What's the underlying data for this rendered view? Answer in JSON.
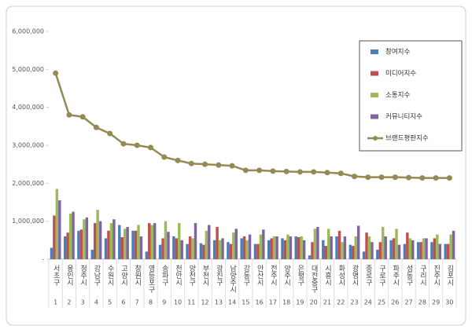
{
  "chart_data": {
    "type": "bar",
    "categories": [
      "서초구",
      "용인시",
      "청주시",
      "강남구",
      "수원시",
      "고양시",
      "창원시",
      "영등포구",
      "송파구",
      "천안시",
      "양천구",
      "부천시",
      "광진구",
      "남양주시",
      "강동구",
      "안산시",
      "전주시",
      "양주시",
      "은평구",
      "대전중구",
      "시흥시",
      "화성시",
      "광명시",
      "종로구",
      "구로구",
      "파주시",
      "성동구",
      "구리시",
      "진주시",
      "김포시"
    ],
    "ranks": [
      "1",
      "2",
      "3",
      "4",
      "5",
      "6",
      "7",
      "8",
      "9",
      "10",
      "11",
      "12",
      "13",
      "14",
      "15",
      "16",
      "17",
      "18",
      "19",
      "20",
      "21",
      "22",
      "23",
      "24",
      "25",
      "26",
      "27",
      "28",
      "29",
      "30"
    ],
    "series": [
      {
        "name": "참여지수",
        "color": "#4a7ebb",
        "type": "bar",
        "values": [
          300000,
          600000,
          750000,
          250000,
          550000,
          900000,
          750000,
          200000,
          380000,
          600000,
          400000,
          420000,
          500000,
          450000,
          550000,
          400000,
          500000,
          550000,
          600000,
          100000,
          500000,
          600000,
          380000,
          200000,
          250000,
          500000,
          400000,
          450000,
          450000,
          400000
        ]
      },
      {
        "name": "미디어지수",
        "color": "#c0504d",
        "type": "bar",
        "values": [
          1150000,
          700000,
          780000,
          950000,
          750000,
          580000,
          750000,
          950000,
          550000,
          550000,
          600000,
          380000,
          850000,
          400000,
          600000,
          400000,
          550000,
          500000,
          580000,
          450000,
          350000,
          750000,
          350000,
          700000,
          450000,
          550000,
          700000,
          450000,
          550000,
          400000
        ]
      },
      {
        "name": "소통지수",
        "color": "#9bbb59",
        "type": "bar",
        "values": [
          1850000,
          1200000,
          1050000,
          1300000,
          950000,
          800000,
          900000,
          900000,
          1000000,
          950000,
          550000,
          750000,
          500000,
          700000,
          500000,
          650000,
          600000,
          650000,
          600000,
          800000,
          800000,
          450000,
          600000,
          600000,
          850000,
          800000,
          550000,
          550000,
          650000,
          650000
        ]
      },
      {
        "name": "커뮤니티지수",
        "color": "#8064a2",
        "type": "bar",
        "values": [
          1550000,
          1250000,
          1100000,
          1000000,
          1050000,
          850000,
          600000,
          950000,
          720000,
          500000,
          950000,
          900000,
          550000,
          800000,
          650000,
          780000,
          600000,
          600000,
          500000,
          850000,
          600000,
          600000,
          880000,
          450000,
          600000,
          380000,
          500000,
          550000,
          400000,
          750000
        ]
      },
      {
        "name": "브랜드평판지수",
        "color": "#948a54",
        "type": "line",
        "values": [
          4900000,
          3800000,
          3750000,
          3470000,
          3310000,
          3040000,
          3000000,
          2940000,
          2690000,
          2600000,
          2520000,
          2500000,
          2480000,
          2460000,
          2340000,
          2340000,
          2320000,
          2310000,
          2300000,
          2300000,
          2280000,
          2260000,
          2180000,
          2160000,
          2160000,
          2160000,
          2150000,
          2140000,
          2140000,
          2140000
        ]
      }
    ],
    "ylim": [
      0,
      6000000
    ],
    "yticks": [
      {
        "value": 0,
        "label": "-"
      },
      {
        "value": 1000000,
        "label": "1,000,000"
      },
      {
        "value": 2000000,
        "label": "2,000,000"
      },
      {
        "value": 3000000,
        "label": "3,000,000"
      },
      {
        "value": 4000000,
        "label": "4,000,000"
      },
      {
        "value": 5000000,
        "label": "5,000,000"
      },
      {
        "value": 6000000,
        "label": "6,000,000"
      }
    ],
    "grid": false,
    "legend": "top-right"
  }
}
